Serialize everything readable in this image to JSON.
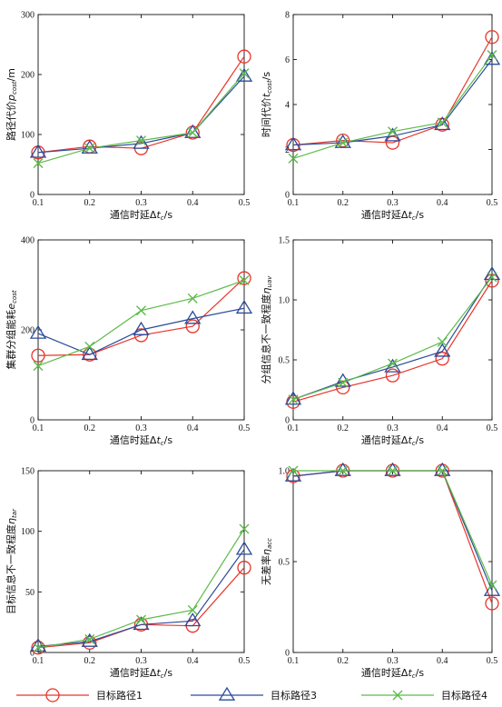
{
  "chart_data": [
    {
      "type": "line",
      "ylabel": {
        "main": "路径代价",
        "sym": "p",
        "sub": "cost",
        "tail": "/m"
      },
      "xlabel": {
        "main": "通信时延Δ",
        "sym": "t",
        "sub": "c",
        "tail": "/s"
      },
      "x": [
        0.1,
        0.2,
        0.3,
        0.4,
        0.5
      ],
      "xlim": [
        0.1,
        0.5
      ],
      "ylim": [
        0,
        300
      ],
      "yticks": [
        "0",
        "100",
        "200",
        "300"
      ],
      "xticks": [
        "0.1",
        "0.2",
        "0.3",
        "0.4",
        "0.5"
      ],
      "series": [
        {
          "values": [
            70,
            80,
            77,
            103,
            230
          ]
        },
        {
          "values": [
            70,
            77,
            85,
            103,
            197
          ]
        },
        {
          "values": [
            52,
            77,
            90,
            103,
            202
          ]
        }
      ]
    },
    {
      "type": "line",
      "ylabel": {
        "main": "时间代价",
        "sym": "t",
        "sub": "cost",
        "tail": "/s"
      },
      "xlabel": {
        "main": "通信时延Δ",
        "sym": "t",
        "sub": "c",
        "tail": "/s"
      },
      "x": [
        0.1,
        0.2,
        0.3,
        0.4,
        0.5
      ],
      "xlim": [
        0.1,
        0.5
      ],
      "ylim": [
        0,
        8
      ],
      "yticks": [
        "0",
        "2",
        "4",
        "6",
        "8"
      ],
      "xticks": [
        "0.1",
        "0.2",
        "0.3",
        "0.4",
        "0.5"
      ],
      "series": [
        {
          "values": [
            2.2,
            2.4,
            2.3,
            3.1,
            7.0
          ]
        },
        {
          "values": [
            2.2,
            2.3,
            2.6,
            3.1,
            6.0
          ]
        },
        {
          "values": [
            1.6,
            2.3,
            2.8,
            3.2,
            6.2
          ]
        }
      ]
    },
    {
      "type": "line",
      "ylabel": {
        "main": "集群分组能耗",
        "sym": "e",
        "sub": "cost",
        "tail": ""
      },
      "xlabel": {
        "main": "通信时延Δ",
        "sym": "t",
        "sub": "c",
        "tail": "/s"
      },
      "x": [
        0.1,
        0.2,
        0.3,
        0.4,
        0.5
      ],
      "xlim": [
        0.1,
        0.5
      ],
      "ylim": [
        0,
        400
      ],
      "yticks": [
        "0",
        "200",
        "400"
      ],
      "xticks": [
        "0.1",
        "0.2",
        "0.3",
        "0.4",
        "0.5"
      ],
      "series": [
        {
          "values": [
            143,
            145,
            188,
            208,
            315
          ]
        },
        {
          "values": [
            192,
            145,
            200,
            225,
            248
          ]
        },
        {
          "values": [
            120,
            163,
            243,
            270,
            310
          ]
        }
      ]
    },
    {
      "type": "line",
      "ylabel": {
        "main": "分组信息不一致程度",
        "sym": "η",
        "sub": "uav",
        "tail": ""
      },
      "xlabel": {
        "main": "通信时延Δ",
        "sym": "t",
        "sub": "c",
        "tail": "/s"
      },
      "x": [
        0.1,
        0.2,
        0.3,
        0.4,
        0.5
      ],
      "xlim": [
        0.1,
        0.5
      ],
      "ylim": [
        0,
        1.5
      ],
      "yticks": [
        "0",
        "0.5",
        "1.0",
        "1.5"
      ],
      "xticks": [
        "0.1",
        "0.2",
        "0.3",
        "0.4",
        "0.5"
      ],
      "series": [
        {
          "values": [
            0.15,
            0.27,
            0.37,
            0.51,
            1.16
          ]
        },
        {
          "values": [
            0.17,
            0.32,
            0.44,
            0.57,
            1.21
          ]
        },
        {
          "values": [
            0.17,
            0.31,
            0.47,
            0.65,
            1.19
          ]
        }
      ]
    },
    {
      "type": "line",
      "ylabel": {
        "main": "目标信息不一致程度",
        "sym": "η",
        "sub": "tar",
        "tail": ""
      },
      "xlabel": {
        "main": "通信时延Δ",
        "sym": "t",
        "sub": "c",
        "tail": "/s"
      },
      "x": [
        0.1,
        0.2,
        0.3,
        0.4,
        0.5
      ],
      "xlim": [
        0.1,
        0.5
      ],
      "ylim": [
        0,
        150
      ],
      "yticks": [
        "0",
        "50",
        "100",
        "150"
      ],
      "xticks": [
        "0.1",
        "0.2",
        "0.3",
        "0.4",
        "0.5"
      ],
      "series": [
        {
          "values": [
            4,
            8,
            23,
            22,
            70
          ]
        },
        {
          "values": [
            5,
            9,
            23,
            26,
            85
          ]
        },
        {
          "values": [
            4,
            11,
            27,
            35,
            102
          ]
        }
      ]
    },
    {
      "type": "line",
      "ylabel": {
        "main": "无差率",
        "sym": "η",
        "sub": "acc",
        "tail": ""
      },
      "xlabel": {
        "main": "通信时延Δ",
        "sym": "t",
        "sub": "c",
        "tail": "/s"
      },
      "x": [
        0.1,
        0.2,
        0.3,
        0.4,
        0.5
      ],
      "xlim": [
        0.1,
        0.5
      ],
      "ylim": [
        0,
        1
      ],
      "yticks": [
        "0",
        "0.5",
        "1.0"
      ],
      "xticks": [
        "0.1",
        "0.2",
        "0.3",
        "0.4",
        "0.5"
      ],
      "series": [
        {
          "values": [
            0.97,
            1.0,
            1.0,
            1.0,
            0.27
          ]
        },
        {
          "values": [
            0.97,
            1.0,
            1.0,
            1.0,
            0.34
          ]
        },
        {
          "values": [
            1.0,
            1.0,
            1.0,
            1.0,
            0.37
          ]
        }
      ]
    }
  ],
  "legend": [
    {
      "label": "目标路径1",
      "marker": "circle",
      "color": "#e8342a"
    },
    {
      "label": "目标路径3",
      "marker": "triangle",
      "color": "#2a4b9c"
    },
    {
      "label": "目标路径4",
      "marker": "x",
      "color": "#5dbb4a"
    }
  ],
  "series_styles": [
    {
      "marker": "circle",
      "color": "#e8342a"
    },
    {
      "marker": "triangle",
      "color": "#2a4b9c"
    },
    {
      "marker": "x",
      "color": "#5dbb4a"
    }
  ],
  "legend_placement": "bottom"
}
